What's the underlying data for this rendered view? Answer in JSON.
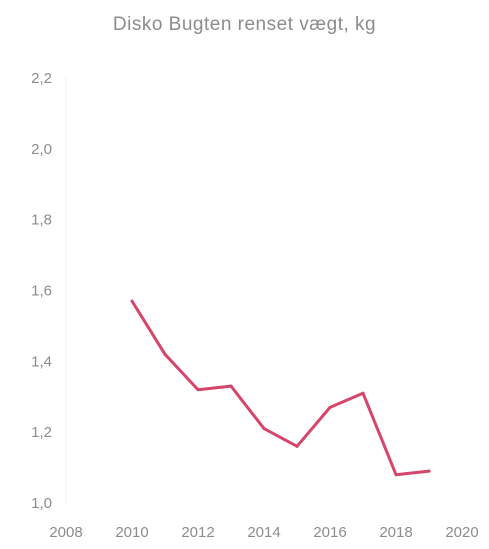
{
  "chart_data": {
    "type": "line",
    "title": "Disko Bugten renset vægt, kg",
    "xlabel": "",
    "ylabel": "",
    "xlim": [
      2008,
      2020
    ],
    "ylim": [
      1.0,
      2.2
    ],
    "x_ticks": [
      "2008",
      "2010",
      "2012",
      "2014",
      "2016",
      "2018",
      "2020"
    ],
    "y_ticks": [
      "1,0",
      "1,2",
      "1,4",
      "1,6",
      "1,8",
      "2,0",
      "2,2"
    ],
    "grid": false,
    "legend": "none",
    "series": [
      {
        "color": "#d6456a",
        "x": [
          2010,
          2011,
          2012,
          2013,
          2014,
          2015,
          2016,
          2017,
          2018,
          2019
        ],
        "y": [
          1.57,
          1.42,
          1.32,
          1.33,
          1.21,
          1.16,
          1.27,
          1.31,
          1.08,
          1.09
        ]
      }
    ]
  }
}
